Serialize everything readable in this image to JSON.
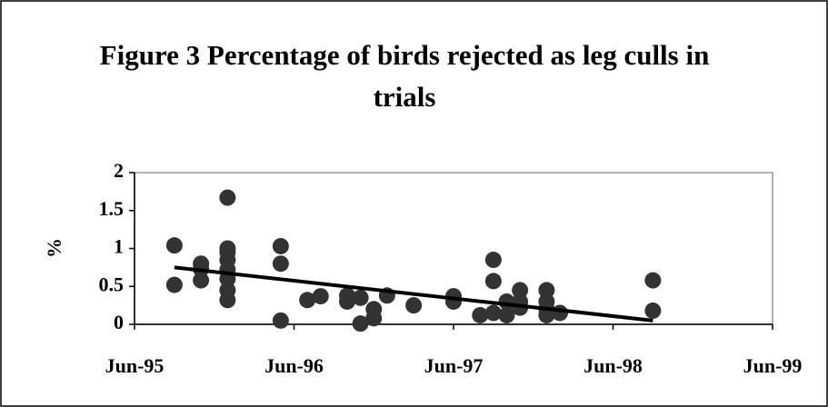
{
  "chart_data": {
    "type": "scatter",
    "title": "Figure 3 Percentage of birds rejected as leg culls in trials",
    "y_label": "%",
    "xlim": [
      "1995-06",
      "1999-06"
    ],
    "xticks": [
      {
        "value": "1995-06",
        "label": "Jun-95"
      },
      {
        "value": "1996-06",
        "label": "Jun-96"
      },
      {
        "value": "1997-06",
        "label": "Jun-97"
      },
      {
        "value": "1998-06",
        "label": "Jun-98"
      },
      {
        "value": "1999-06",
        "label": "Jun-99"
      }
    ],
    "ylim": [
      0,
      2
    ],
    "yticks": [
      0,
      0.5,
      1,
      1.5,
      2
    ],
    "grid": false,
    "color": "#333333",
    "series": [
      {
        "color": "#333333",
        "x": [
          "1995-09",
          "1995-09",
          "1995-11",
          "1995-11",
          "1995-11",
          "1996-01",
          "1996-01",
          "1996-01",
          "1996-01",
          "1996-01",
          "1996-01",
          "1996-01",
          "1996-01",
          "1996-05",
          "1996-05",
          "1996-05",
          "1996-07",
          "1996-08",
          "1996-10",
          "1996-10",
          "1996-11",
          "1996-11",
          "1996-12",
          "1996-12",
          "1997-01",
          "1997-03",
          "1997-06",
          "1997-06",
          "1997-08",
          "1997-09",
          "1997-09",
          "1997-09",
          "1997-10",
          "1997-10",
          "1997-11",
          "1997-11",
          "1997-11",
          "1998-01",
          "1998-01",
          "1998-01",
          "1998-01",
          "1998-02",
          "1998-09",
          "1998-09"
        ],
        "values": [
          1.04,
          0.52,
          0.8,
          0.73,
          0.58,
          1.67,
          1.0,
          0.95,
          0.85,
          0.72,
          0.6,
          0.45,
          0.32,
          1.03,
          0.8,
          0.05,
          0.32,
          0.37,
          0.38,
          0.3,
          0.35,
          0.01,
          0.2,
          0.08,
          0.38,
          0.25,
          0.37,
          0.3,
          0.12,
          0.85,
          0.57,
          0.15,
          0.3,
          0.12,
          0.45,
          0.3,
          0.22,
          0.45,
          0.3,
          0.2,
          0.12,
          0.15,
          0.58,
          0.18
        ]
      }
    ],
    "trendline": {
      "color": "#000000",
      "x": [
        "1995-09",
        "1998-09"
      ],
      "values": [
        0.75,
        0.05
      ]
    }
  }
}
